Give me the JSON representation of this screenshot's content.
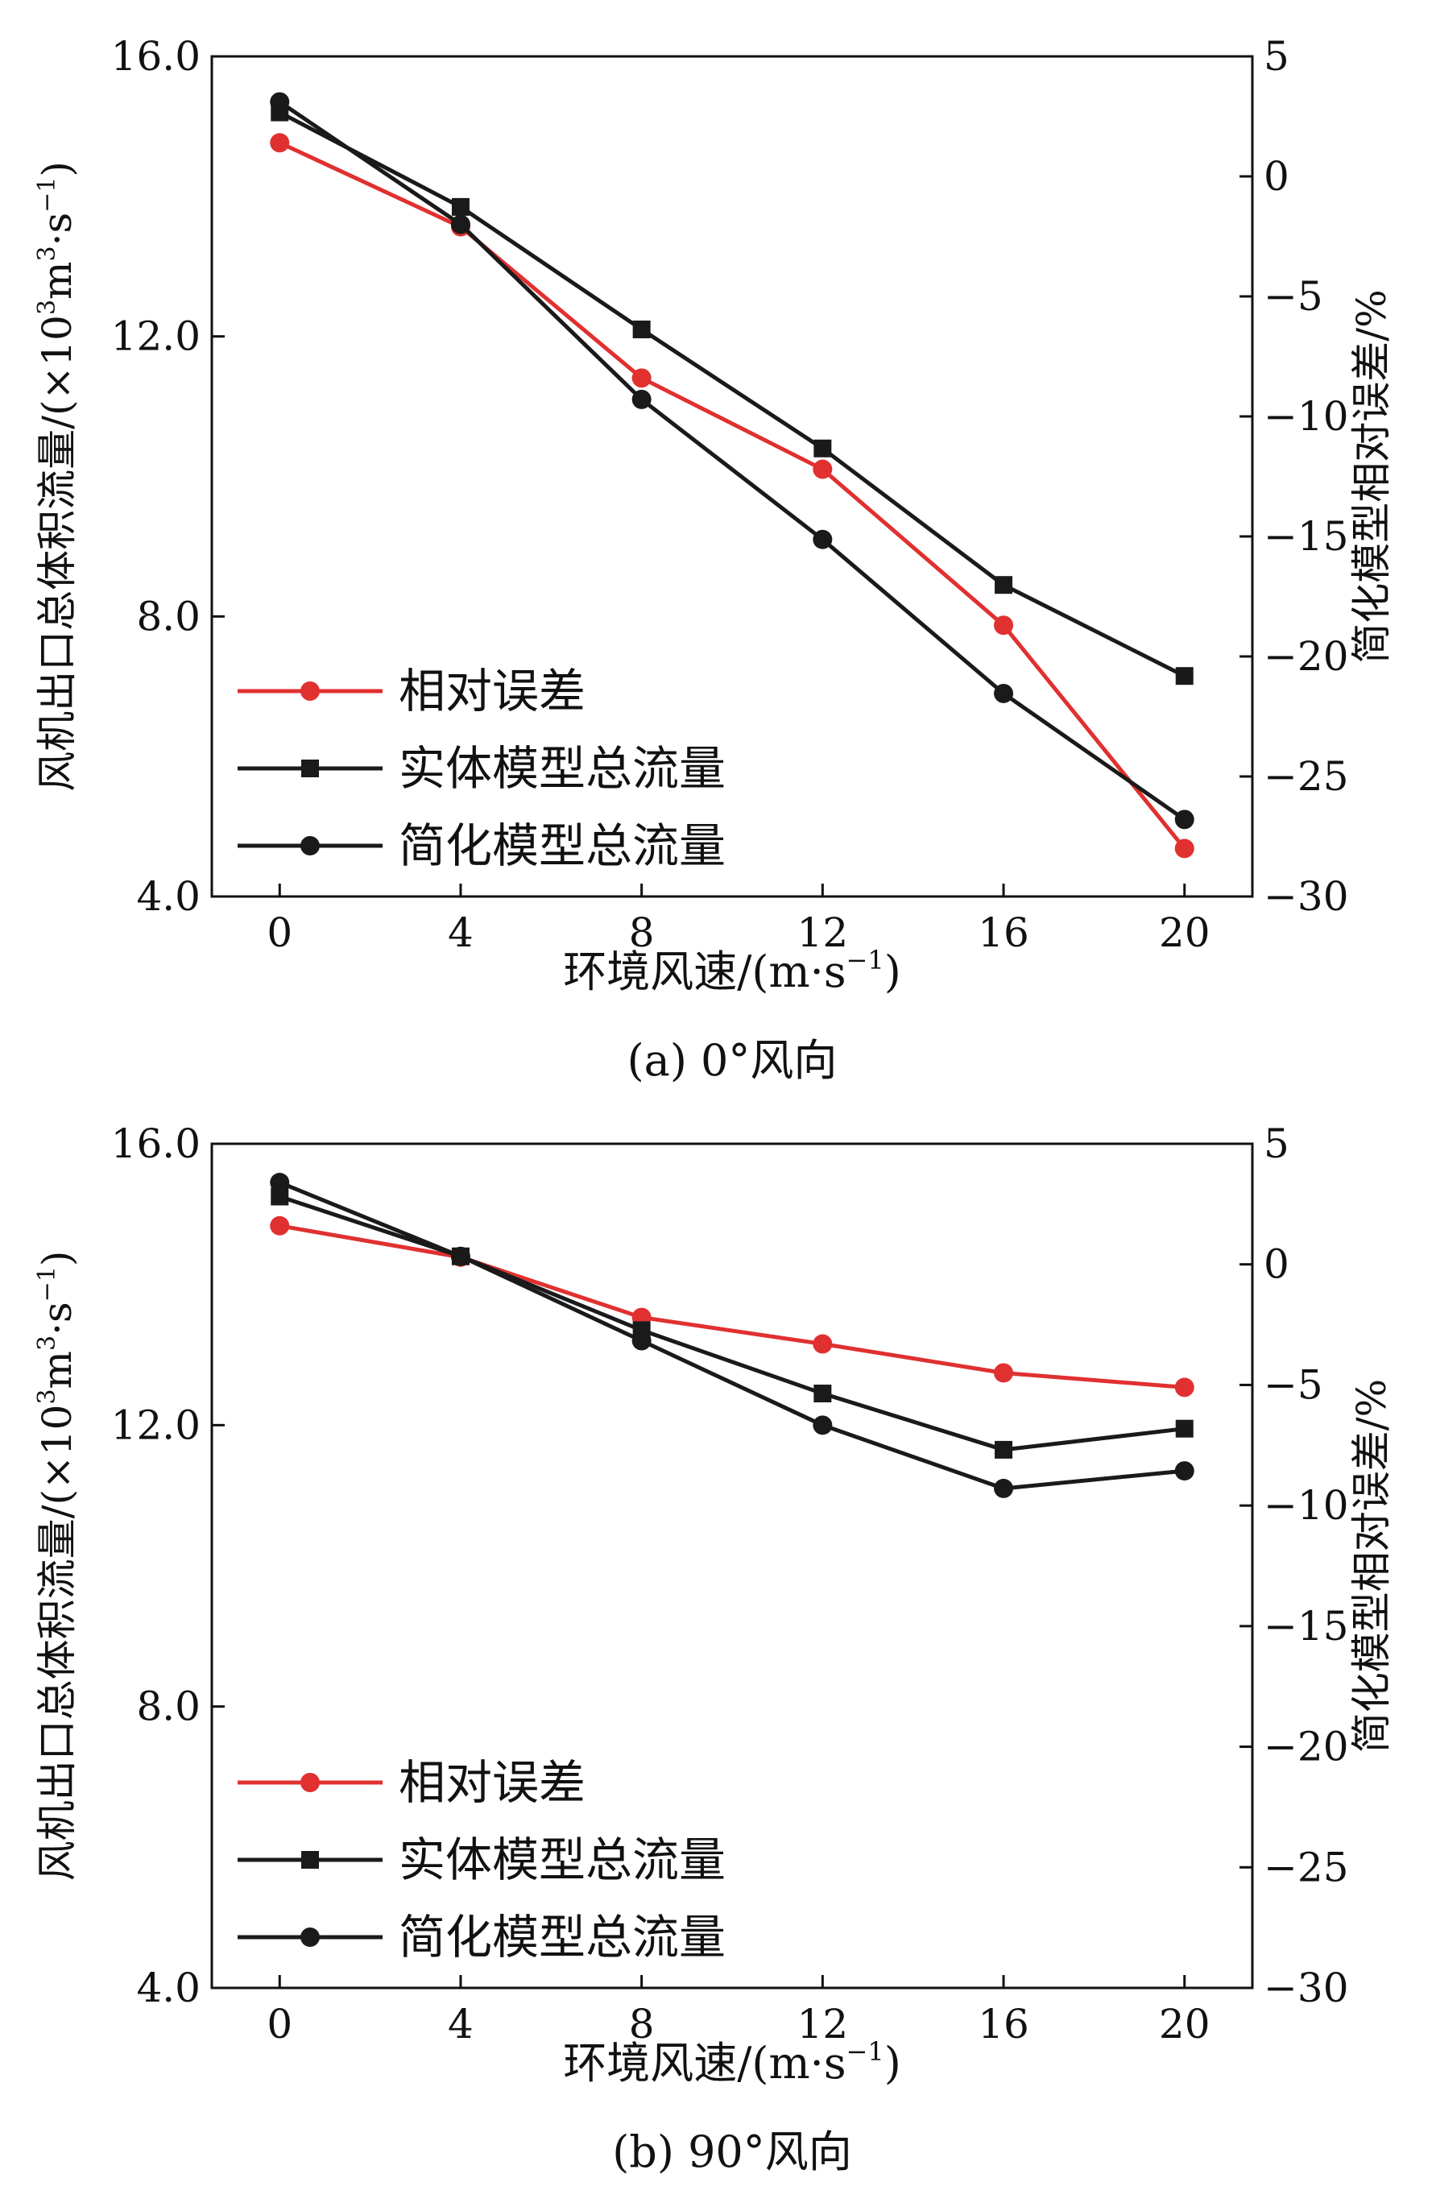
{
  "figure": {
    "panels": [
      {
        "caption": "(a) 0°风向",
        "chart_data": {
          "type": "line",
          "xlabel_main": "环境风速/(m·s",
          "xlabel_sup": "−1",
          "xlabel_end": ")",
          "ylabel_main": "风机出口总体积流量/(×10",
          "ylabel_sup1": "3",
          "ylabel_mid": "m",
          "ylabel_sup2": "3",
          "ylabel_mid2": "·s",
          "ylabel_sup3": "−1",
          "ylabel_end": ")",
          "y2label": "简化模型相对误差/%",
          "x": [
            0,
            4,
            8,
            12,
            16,
            20
          ],
          "xlim": [
            -1.5,
            21.5
          ],
          "ylim": [
            4.0,
            16.0
          ],
          "y2lim": [
            -30,
            5
          ],
          "xticks": [
            "0",
            "4",
            "8",
            "12",
            "16",
            "20"
          ],
          "yticks": [
            "4.0",
            "8.0",
            "12.0",
            "16.0"
          ],
          "y2ticks": [
            "-30",
            "-25",
            "-20",
            "-15",
            "-10",
            "-5",
            "0",
            "5"
          ],
          "legend_position": "bottom-left",
          "series": [
            {
              "name": "相对误差",
              "axis": "right",
              "marker": "circle",
              "color": "#e03030",
              "values": [
                1.4,
                -2.1,
                -8.4,
                -12.2,
                -18.7,
                -28.0
              ]
            },
            {
              "name": "实体模型总流量",
              "axis": "left",
              "marker": "square",
              "color": "#1a1a1a",
              "values": [
                15.2,
                13.85,
                12.1,
                10.4,
                8.45,
                7.15
              ]
            },
            {
              "name": "简化模型总流量",
              "axis": "left",
              "marker": "circle",
              "color": "#1a1a1a",
              "values": [
                15.35,
                13.6,
                11.1,
                9.1,
                6.9,
                5.1
              ]
            }
          ]
        }
      },
      {
        "caption": "(b) 90°风向",
        "chart_data": {
          "type": "line",
          "xlabel_main": "环境风速/(m·s",
          "xlabel_sup": "−1",
          "xlabel_end": ")",
          "ylabel_main": "风机出口总体积流量/(×10",
          "ylabel_sup1": "3",
          "ylabel_mid": "m",
          "ylabel_sup2": "3",
          "ylabel_mid2": "·s",
          "ylabel_sup3": "−1",
          "ylabel_end": ")",
          "y2label": "简化模型相对误差/%",
          "x": [
            0,
            4,
            8,
            12,
            16,
            20
          ],
          "xlim": [
            -1.5,
            21.5
          ],
          "ylim": [
            4.0,
            16.0
          ],
          "y2lim": [
            -30,
            5
          ],
          "xticks": [
            "0",
            "4",
            "8",
            "12",
            "16",
            "20"
          ],
          "yticks": [
            "4.0",
            "8.0",
            "12.0",
            "16.0"
          ],
          "y2ticks": [
            "-30",
            "-25",
            "-20",
            "-15",
            "-10",
            "-5",
            "0",
            "5"
          ],
          "legend_position": "bottom-left",
          "series": [
            {
              "name": "相对误差",
              "axis": "right",
              "marker": "circle",
              "color": "#e03030",
              "values": [
                1.6,
                0.3,
                -2.2,
                -3.3,
                -4.5,
                -5.1
              ]
            },
            {
              "name": "实体模型总流量",
              "axis": "left",
              "marker": "square",
              "color": "#1a1a1a",
              "values": [
                15.25,
                14.4,
                13.35,
                12.45,
                11.65,
                11.95
              ]
            },
            {
              "name": "简化模型总流量",
              "axis": "left",
              "marker": "circle",
              "color": "#1a1a1a",
              "values": [
                15.45,
                14.4,
                13.2,
                12.0,
                11.1,
                11.35
              ]
            }
          ]
        }
      }
    ]
  }
}
